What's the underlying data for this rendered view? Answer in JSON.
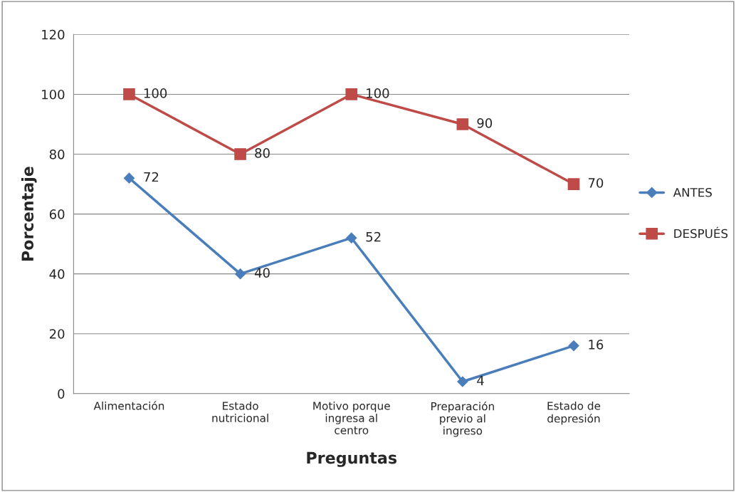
{
  "chart_data": {
    "type": "line",
    "xlabel": "Preguntas",
    "ylabel": "Porcentaje",
    "categories": [
      "Alimentación",
      "Estado nutricional",
      "Motivo porque ingresa al centro",
      "Preparación previo al ingreso",
      "Estado de depresión"
    ],
    "series": [
      {
        "name": "ANTES",
        "color": "#4a7ebb",
        "marker": "diamond",
        "values": [
          72,
          40,
          52,
          4,
          16
        ]
      },
      {
        "name": "DESPUÉS",
        "color": "#be4b48",
        "marker": "square",
        "values": [
          100,
          80,
          100,
          90,
          70
        ]
      }
    ],
    "ylim": [
      0,
      120
    ],
    "yticks": [
      0,
      20,
      40,
      60,
      80,
      100,
      120
    ],
    "grid": "y",
    "legend": "right",
    "data_labels": true
  }
}
